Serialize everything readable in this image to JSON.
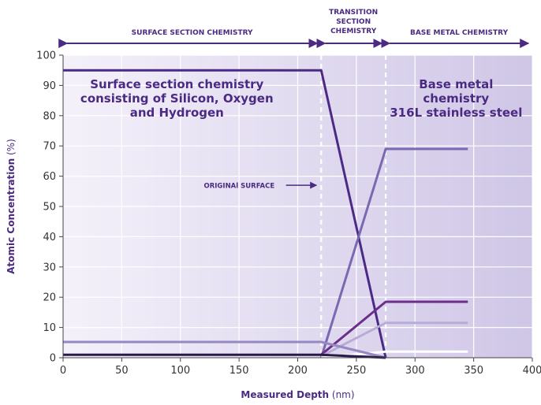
{
  "chart_data": {
    "type": "line",
    "xlabel_bold": "Measured Depth",
    "xlabel_unit": "(nm)",
    "ylabel_bold": "Atomic Concentration",
    "ylabel_unit": "(%)",
    "xlim": [
      0,
      400
    ],
    "ylim": [
      0,
      100
    ],
    "xticks": [
      0,
      50,
      100,
      150,
      200,
      250,
      300,
      350,
      400
    ],
    "yticks": [
      0,
      10,
      20,
      30,
      40,
      50,
      60,
      70,
      80,
      90,
      100
    ],
    "grid": true,
    "sections": [
      {
        "label": "SURFACE SECTION CHEMISTRY",
        "from": 0,
        "to": 220
      },
      {
        "label": "TRANSITION SECTION CHEMISTRY",
        "from": 220,
        "to": 275
      },
      {
        "label": "BASE METAL CHEMISTRY",
        "from": 275,
        "to": 400
      }
    ],
    "boundaries": [
      220,
      275
    ],
    "annotations": {
      "surface": [
        "Surface section chemistry",
        "consisting  of Silicon, Oxygen",
        "and Hydrogen"
      ],
      "base": [
        "Base metal",
        "chemistry",
        "316L stainless steel"
      ],
      "original_surface": "ORIGINAl SURFACE"
    },
    "series": [
      {
        "color": "#4b2a86",
        "points": [
          [
            0,
            95
          ],
          [
            220,
            95
          ],
          [
            275,
            0
          ]
        ]
      },
      {
        "color": "#7a68b0",
        "points": [
          [
            220,
            0
          ],
          [
            275,
            69
          ],
          [
            345,
            69
          ]
        ]
      },
      {
        "color": "#6b2f8a",
        "points": [
          [
            220,
            1
          ],
          [
            275,
            18.5
          ],
          [
            345,
            18.5
          ]
        ]
      },
      {
        "color": "#b8acd6",
        "points": [
          [
            220,
            0.5
          ],
          [
            275,
            11.5
          ],
          [
            345,
            11.5
          ]
        ]
      },
      {
        "color": "#ffffff",
        "points": [
          [
            220,
            0
          ],
          [
            275,
            2
          ],
          [
            345,
            2
          ]
        ]
      },
      {
        "color": "#9787c2",
        "points": [
          [
            0,
            5.2
          ],
          [
            220,
            5.2
          ],
          [
            275,
            0
          ]
        ]
      },
      {
        "color": "#2a1a4a",
        "points": [
          [
            0,
            1
          ],
          [
            220,
            1
          ],
          [
            275,
            0
          ]
        ]
      }
    ]
  }
}
